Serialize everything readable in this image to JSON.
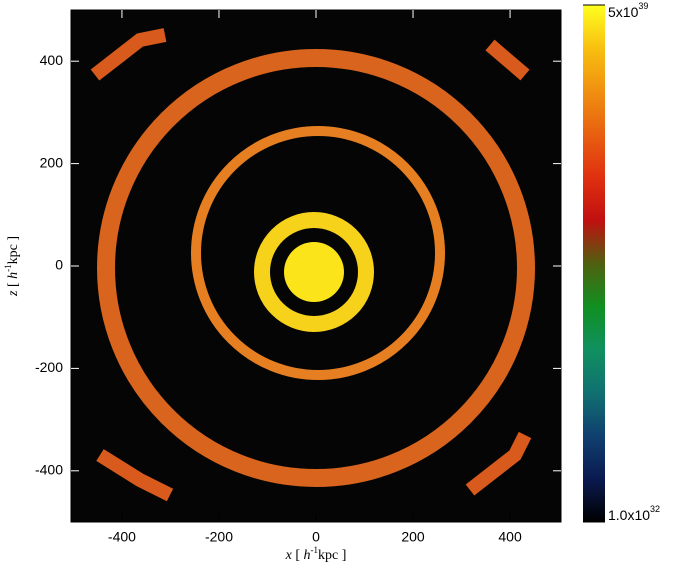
{
  "chart_data": {
    "type": "heatmap",
    "xlabel": [
      "x",
      "[ ",
      "h",
      "-1",
      "kpc ]"
    ],
    "ylabel": [
      "z",
      "[ ",
      "h",
      "-1",
      "kpc ]"
    ],
    "xlim": [
      -505,
      505
    ],
    "ylim": [
      -500,
      500
    ],
    "xticks": [
      -400,
      -200,
      0,
      200,
      400
    ],
    "yticks": [
      -400,
      -200,
      0,
      200,
      400
    ],
    "colorbar": {
      "lim": [
        1e+32,
        5e+39
      ],
      "log": true,
      "ticks": [
        {
          "value": 5e+39,
          "label": "5x10",
          "exponent": "39"
        },
        {
          "value": 1e+32,
          "label": "1.0x10",
          "exponent": "32"
        }
      ],
      "colormap": [
        "#000000",
        "#0a1a50",
        "#104070",
        "#107070",
        "#109060",
        "#109020",
        "#506010",
        "#c01010",
        "#e03010",
        "#e86010",
        "#f09010",
        "#f8c010",
        "#ffff20"
      ]
    }
  }
}
